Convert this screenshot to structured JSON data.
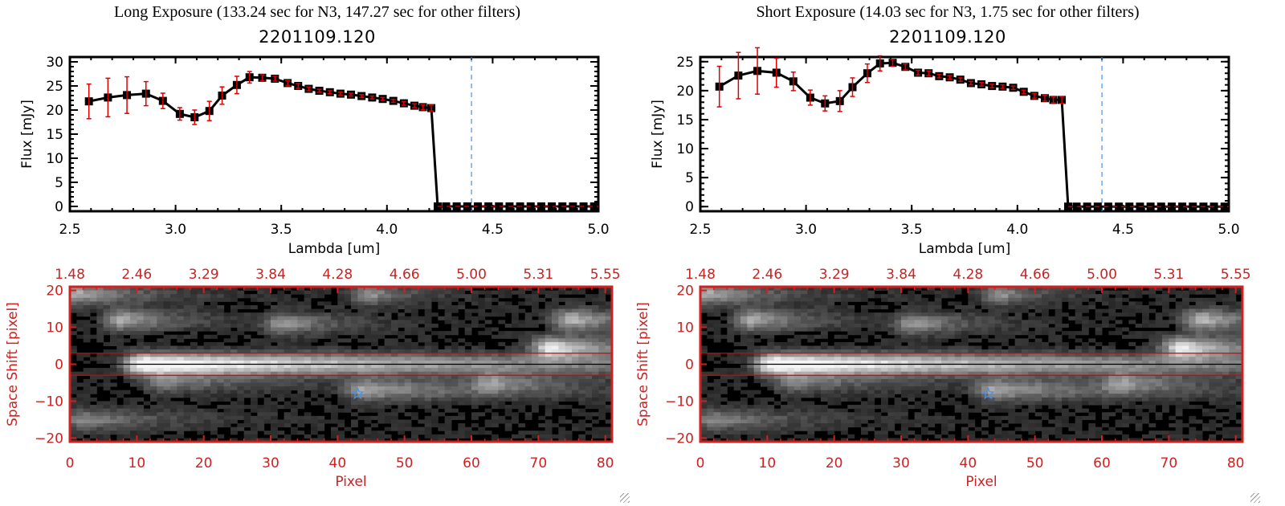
{
  "panels": [
    {
      "exposure_title": "Long Exposure (133.24 sec for N3, 147.27 sec for other filters)",
      "plot_title": "2201109.120"
    },
    {
      "exposure_title": "Short Exposure (14.03 sec for N3, 1.75 sec for other filters)",
      "plot_title": "2201109.120"
    }
  ],
  "colors": {
    "line": "#000000",
    "errorbar": "#e00000",
    "marker_line": "#4a90e2",
    "image_axis": "#cc2222",
    "extraction_band": "#dd0000",
    "zero_line": "#dd0000"
  },
  "chart_data": [
    {
      "type": "line",
      "title": "2201109.120",
      "subtitle": "Long Exposure (133.24 sec for N3, 147.27 sec for other filters)",
      "xlabel": "Lambda [um]",
      "ylabel": "Flux [mJy]",
      "xlim": [
        2.5,
        5.0
      ],
      "ylim": [
        -1,
        31
      ],
      "xticks": [
        "2.5",
        "3.0",
        "3.5",
        "4.0",
        "4.5",
        "5.0"
      ],
      "yticks": [
        "0",
        "5",
        "10",
        "15",
        "20",
        "25",
        "30"
      ],
      "xtick_values": [
        2.5,
        3.0,
        3.5,
        4.0,
        4.5,
        5.0
      ],
      "ytick_values": [
        0,
        5,
        10,
        15,
        20,
        25,
        30
      ],
      "vline_x": 4.4,
      "series": [
        {
          "name": "flux",
          "x": [
            2.59,
            2.68,
            2.77,
            2.86,
            2.94,
            3.02,
            3.09,
            3.16,
            3.22,
            3.29,
            3.35,
            3.41,
            3.47,
            3.53,
            3.58,
            3.63,
            3.68,
            3.73,
            3.78,
            3.83,
            3.88,
            3.93,
            3.98,
            4.03,
            4.08,
            4.13,
            4.17,
            4.21,
            4.24,
            4.28,
            4.33,
            4.38,
            4.43,
            4.48,
            4.53,
            4.58,
            4.63,
            4.68,
            4.73,
            4.78,
            4.83,
            4.88,
            4.93,
            4.98
          ],
          "y": [
            21.8,
            22.6,
            23.1,
            23.4,
            21.9,
            19.2,
            18.5,
            19.8,
            23.0,
            25.2,
            26.8,
            26.7,
            26.5,
            25.6,
            25.0,
            24.4,
            24.0,
            23.7,
            23.4,
            23.2,
            22.9,
            22.6,
            22.3,
            21.9,
            21.4,
            20.9,
            20.6,
            20.4,
            0,
            0,
            0,
            0,
            0,
            0,
            0,
            0,
            0,
            0,
            0,
            0,
            0,
            0,
            0,
            0
          ],
          "yerr": [
            3.6,
            4.0,
            3.8,
            2.5,
            1.6,
            1.3,
            1.5,
            2.0,
            1.8,
            1.8,
            1.2,
            0.6,
            0.5,
            0.5,
            0.5,
            0.4,
            0.3,
            0.3,
            0.3,
            0.3,
            0.3,
            0.3,
            0.3,
            0.3,
            0.4,
            0.4,
            0.5,
            0.6,
            0,
            0,
            0,
            0,
            0,
            0,
            0,
            0,
            0,
            0,
            0,
            0,
            0,
            0,
            0,
            0
          ]
        }
      ]
    },
    {
      "type": "heatmap",
      "title": "",
      "xlabel": "Pixel",
      "ylabel": "Space Shift [pixel]",
      "xlim": [
        0,
        81
      ],
      "ylim": [
        -21,
        21
      ],
      "xticks": [
        "0",
        "10",
        "20",
        "30",
        "40",
        "50",
        "60",
        "70",
        "80"
      ],
      "xtick_values": [
        0,
        10,
        20,
        30,
        40,
        50,
        60,
        70,
        80
      ],
      "yticks": [
        "-20",
        "-10",
        "0",
        "10",
        "20"
      ],
      "ytick_values": [
        -20,
        -10,
        0,
        10,
        20
      ],
      "top_xticks": [
        "1.48",
        "2.46",
        "3.29",
        "3.84",
        "4.28",
        "4.66",
        "5.00",
        "5.31",
        "5.55"
      ],
      "band_limits": [
        -3,
        3
      ],
      "marker_star": {
        "x": 43,
        "y": -8
      },
      "sources": [
        {
          "x": 11,
          "y": 0,
          "peak": 1.0,
          "length": 60
        },
        {
          "x": 72,
          "y": 4.5,
          "peak": 0.8,
          "length": 10
        },
        {
          "x": 8,
          "y": 12,
          "peak": 0.55,
          "length": 8
        },
        {
          "x": 32,
          "y": 11,
          "peak": 0.45,
          "length": 8
        },
        {
          "x": 1,
          "y": 19,
          "peak": 0.55,
          "length": 10
        },
        {
          "x": 45,
          "y": 19,
          "peak": 0.45,
          "length": 6
        },
        {
          "x": 75,
          "y": 12,
          "peak": 0.6,
          "length": 8
        },
        {
          "x": 44,
          "y": -7,
          "peak": 0.5,
          "length": 18
        },
        {
          "x": 63,
          "y": -5,
          "peak": 0.38,
          "length": 8
        },
        {
          "x": 2,
          "y": -15,
          "peak": 0.4,
          "length": 12
        },
        {
          "x": 14,
          "y": -5,
          "peak": 0.35,
          "length": 14
        }
      ]
    },
    {
      "type": "line",
      "title": "2201109.120",
      "subtitle": "Short Exposure (14.03 sec for N3, 1.75 sec for other filters)",
      "xlabel": "Lambda [um]",
      "ylabel": "Flux [mJy]",
      "xlim": [
        2.5,
        5.0
      ],
      "ylim": [
        -0.8,
        25.8
      ],
      "xticks": [
        "2.5",
        "3.0",
        "3.5",
        "4.0",
        "4.5",
        "5.0"
      ],
      "yticks": [
        "0",
        "5",
        "10",
        "15",
        "20",
        "25"
      ],
      "xtick_values": [
        2.5,
        3.0,
        3.5,
        4.0,
        4.5,
        5.0
      ],
      "ytick_values": [
        0,
        5,
        10,
        15,
        20,
        25
      ],
      "vline_x": 4.4,
      "series": [
        {
          "name": "flux",
          "x": [
            2.59,
            2.68,
            2.77,
            2.86,
            2.94,
            3.02,
            3.09,
            3.16,
            3.22,
            3.29,
            3.35,
            3.41,
            3.47,
            3.53,
            3.58,
            3.63,
            3.68,
            3.73,
            3.78,
            3.83,
            3.88,
            3.93,
            3.98,
            4.03,
            4.08,
            4.13,
            4.17,
            4.21,
            4.24,
            4.28,
            4.33,
            4.38,
            4.43,
            4.48,
            4.53,
            4.58,
            4.63,
            4.68,
            4.73,
            4.78,
            4.83,
            4.88,
            4.93,
            4.98
          ],
          "y": [
            20.7,
            22.6,
            23.4,
            23.1,
            21.6,
            18.8,
            17.8,
            18.2,
            20.6,
            23.0,
            24.7,
            24.8,
            24.1,
            23.1,
            23.0,
            22.5,
            22.3,
            21.9,
            21.3,
            21.1,
            20.8,
            20.7,
            20.5,
            19.8,
            19.1,
            18.7,
            18.4,
            18.4,
            0,
            0,
            0,
            0,
            0,
            0,
            0,
            0,
            0,
            0,
            0,
            0,
            0,
            0,
            0,
            0
          ],
          "yerr": [
            3.5,
            4.0,
            4.0,
            2.5,
            1.6,
            1.3,
            1.3,
            1.8,
            1.6,
            1.6,
            1.3,
            0.6,
            0.5,
            0.4,
            0.4,
            0.3,
            0.3,
            0.3,
            0.3,
            0.3,
            0.3,
            0.3,
            0.3,
            0.3,
            0.4,
            0.5,
            0.5,
            0.6,
            0,
            0,
            0,
            0,
            0,
            0,
            0,
            0,
            0,
            0,
            0,
            0,
            0,
            0,
            0,
            0
          ]
        }
      ]
    },
    {
      "type": "heatmap",
      "title": "",
      "xlabel": "Pixel",
      "ylabel": "Space Shift [pixel]",
      "xlim": [
        0,
        81
      ],
      "ylim": [
        -21,
        21
      ],
      "xticks": [
        "0",
        "10",
        "20",
        "30",
        "40",
        "50",
        "60",
        "70",
        "80"
      ],
      "xtick_values": [
        0,
        10,
        20,
        30,
        40,
        50,
        60,
        70,
        80
      ],
      "yticks": [
        "-20",
        "-10",
        "0",
        "10",
        "20"
      ],
      "ytick_values": [
        -20,
        -10,
        0,
        10,
        20
      ],
      "top_xticks": [
        "1.48",
        "2.46",
        "3.29",
        "3.84",
        "4.28",
        "4.66",
        "5.00",
        "5.31",
        "5.55"
      ],
      "band_limits": [
        -3,
        3
      ],
      "marker_star": {
        "x": 43,
        "y": -8
      },
      "sources": [
        {
          "x": 11,
          "y": 0,
          "peak": 1.0,
          "length": 60
        },
        {
          "x": 72,
          "y": 4.5,
          "peak": 0.8,
          "length": 10
        },
        {
          "x": 8,
          "y": 12,
          "peak": 0.55,
          "length": 8
        },
        {
          "x": 32,
          "y": 11,
          "peak": 0.45,
          "length": 8
        },
        {
          "x": 1,
          "y": 19,
          "peak": 0.55,
          "length": 10
        },
        {
          "x": 45,
          "y": 19,
          "peak": 0.45,
          "length": 6
        },
        {
          "x": 75,
          "y": 12,
          "peak": 0.6,
          "length": 8
        },
        {
          "x": 44,
          "y": -7,
          "peak": 0.5,
          "length": 18
        },
        {
          "x": 63,
          "y": -5,
          "peak": 0.38,
          "length": 8
        },
        {
          "x": 2,
          "y": -15,
          "peak": 0.4,
          "length": 12
        },
        {
          "x": 14,
          "y": -5,
          "peak": 0.35,
          "length": 14
        }
      ]
    }
  ]
}
